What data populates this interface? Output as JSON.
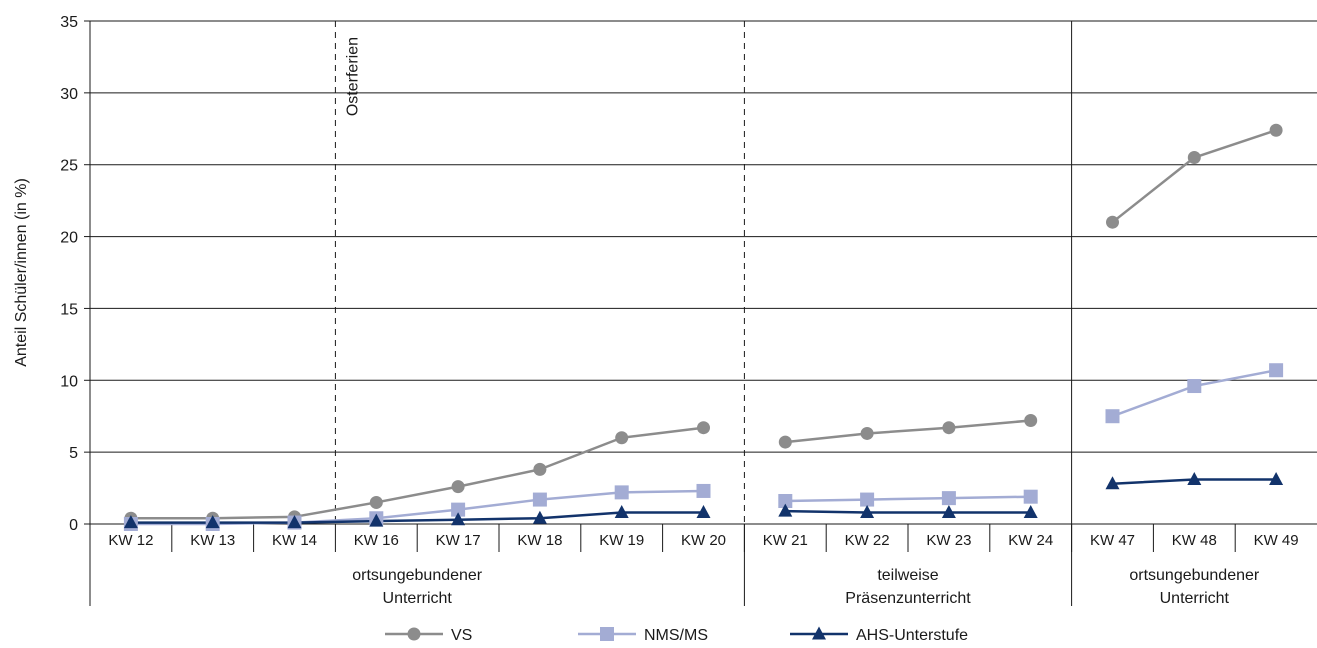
{
  "chart_data": {
    "type": "line",
    "ylabel": "Anteil Schüler/innen (in %)",
    "ylim": [
      0,
      35
    ],
    "yticks": [
      0,
      5,
      10,
      15,
      20,
      25,
      30,
      35
    ],
    "grid": true,
    "legend_position": "bottom",
    "categories": [
      "KW 12",
      "KW 13",
      "KW 14",
      "KW 16",
      "KW 17",
      "KW 18",
      "KW 19",
      "KW 20",
      "KW 21",
      "KW 22",
      "KW 23",
      "KW 24",
      "KW 47",
      "KW 48",
      "KW 49"
    ],
    "segments": [
      [
        0,
        7
      ],
      [
        8,
        11
      ],
      [
        12,
        14
      ]
    ],
    "groups": [
      {
        "lines": [
          "ortsungebundener",
          "Unterricht"
        ],
        "start": 0,
        "end": 7
      },
      {
        "lines": [
          "teilweise",
          "Präsenzunterricht"
        ],
        "start": 8,
        "end": 11
      },
      {
        "lines": [
          "ortsungebundener",
          "Unterricht"
        ],
        "start": 12,
        "end": 14
      }
    ],
    "series": [
      {
        "name": "VS",
        "color": "#8c8c8c",
        "marker": "circle",
        "values": [
          0.4,
          0.4,
          0.5,
          1.5,
          2.6,
          3.8,
          6.0,
          6.7,
          5.7,
          6.3,
          6.7,
          7.2,
          21.0,
          25.5,
          27.4
        ]
      },
      {
        "name": "NMS/MS",
        "color": "#a3acd4",
        "marker": "square",
        "values": [
          0.0,
          0.0,
          0.1,
          0.4,
          1.0,
          1.7,
          2.2,
          2.3,
          1.6,
          1.7,
          1.8,
          1.9,
          7.5,
          9.6,
          10.7
        ]
      },
      {
        "name": "AHS-Unterstufe",
        "color": "#12336b",
        "marker": "triangle",
        "values": [
          0.1,
          0.1,
          0.1,
          0.2,
          0.3,
          0.4,
          0.8,
          0.8,
          0.9,
          0.8,
          0.8,
          0.8,
          2.8,
          3.1,
          3.1
        ]
      }
    ],
    "annotations": [
      {
        "text": "Osterferien",
        "between": [
          "KW 14",
          "KW 16"
        ],
        "line": "dashed"
      }
    ],
    "separators": [
      {
        "between": [
          "KW 20",
          "KW 21"
        ],
        "line": "dashed"
      },
      {
        "between": [
          "KW 24",
          "KW 47"
        ],
        "line": "solid"
      }
    ]
  }
}
